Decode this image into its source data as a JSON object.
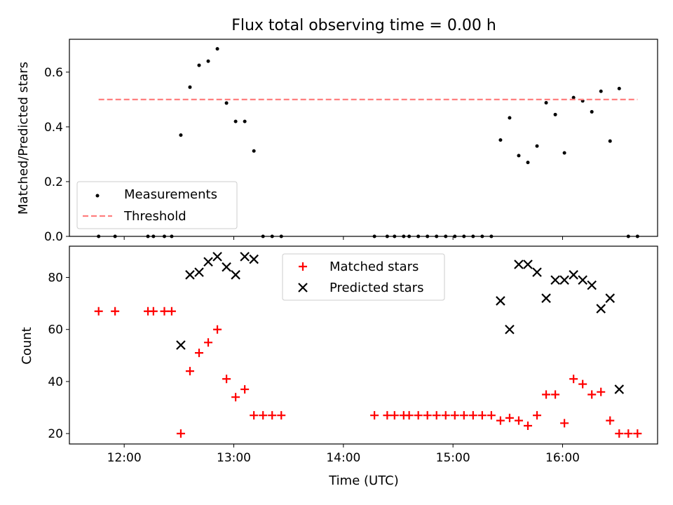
{
  "chart_data": [
    {
      "type": "scatter",
      "title": "Flux total observing time = 0.00 h",
      "xlabel": "",
      "ylabel": "Matched/Predicted stars",
      "xlim": [
        "11:30",
        "16:52"
      ],
      "ylim": [
        0,
        0.72
      ],
      "yticks": [
        0.0,
        0.2,
        0.4,
        0.6
      ],
      "yticklabels": [
        "0.0",
        "0.2",
        "0.4",
        "0.6"
      ],
      "grid": false,
      "legend": "lower left",
      "series": [
        {
          "name": "Measurements",
          "marker": "dot",
          "color": "#000000",
          "points": [
            [
              "11:46",
              0
            ],
            [
              "11:55",
              0
            ],
            [
              "12:13",
              0
            ],
            [
              "12:16",
              0
            ],
            [
              "12:22",
              0
            ],
            [
              "12:26",
              0
            ],
            [
              "12:31",
              0.37
            ],
            [
              "12:36",
              0.545
            ],
            [
              "12:41",
              0.625
            ],
            [
              "12:46",
              0.64
            ],
            [
              "12:51",
              0.685
            ],
            [
              "12:56",
              0.487
            ],
            [
              "13:01",
              0.42
            ],
            [
              "13:06",
              0.42
            ],
            [
              "13:11",
              0.312
            ],
            [
              "13:16",
              0
            ],
            [
              "13:21",
              0
            ],
            [
              "13:26",
              0
            ],
            [
              "14:17",
              0
            ],
            [
              "14:24",
              0
            ],
            [
              "14:28",
              0
            ],
            [
              "14:33",
              0
            ],
            [
              "14:36",
              0
            ],
            [
              "14:41",
              0
            ],
            [
              "14:46",
              0
            ],
            [
              "14:51",
              0
            ],
            [
              "14:56",
              0
            ],
            [
              "15:01",
              0
            ],
            [
              "15:06",
              0
            ],
            [
              "15:11",
              0
            ],
            [
              "15:16",
              0
            ],
            [
              "15:21",
              0
            ],
            [
              "15:26",
              0.352
            ],
            [
              "15:31",
              0.433
            ],
            [
              "15:36",
              0.295
            ],
            [
              "15:41",
              0.27
            ],
            [
              "15:46",
              0.33
            ],
            [
              "15:51",
              0.488
            ],
            [
              "15:56",
              0.445
            ],
            [
              "16:01",
              0.305
            ],
            [
              "16:06",
              0.507
            ],
            [
              "16:11",
              0.495
            ],
            [
              "16:16",
              0.455
            ],
            [
              "16:21",
              0.53
            ],
            [
              "16:26",
              0.348
            ],
            [
              "16:31",
              0.54
            ],
            [
              "16:36",
              0
            ],
            [
              "16:41",
              0
            ]
          ]
        },
        {
          "name": "Threshold",
          "marker": "dashed-line",
          "color": "#ff7f7f",
          "points": [
            [
              "11:46",
              0.5
            ],
            [
              "16:41",
              0.5
            ]
          ]
        }
      ]
    },
    {
      "type": "scatter",
      "title": "",
      "xlabel": "Time (UTC)",
      "ylabel": "Count",
      "xlim": [
        "11:30",
        "16:52"
      ],
      "ylim": [
        16,
        92
      ],
      "yticks": [
        20,
        40,
        60,
        80
      ],
      "yticklabels": [
        "20",
        "40",
        "60",
        "80"
      ],
      "xticks": [
        "12:00",
        "13:00",
        "14:00",
        "15:00",
        "16:00"
      ],
      "xticklabels": [
        "12:00",
        "13:00",
        "14:00",
        "15:00",
        "16:00"
      ],
      "grid": false,
      "legend": "upper center",
      "series": [
        {
          "name": "Matched stars",
          "marker": "plus",
          "color": "#ff0000",
          "points": [
            [
              "11:46",
              67
            ],
            [
              "11:55",
              67
            ],
            [
              "12:13",
              67
            ],
            [
              "12:16",
              67
            ],
            [
              "12:22",
              67
            ],
            [
              "12:26",
              67
            ],
            [
              "12:31",
              20
            ],
            [
              "12:36",
              44
            ],
            [
              "12:41",
              51
            ],
            [
              "12:46",
              55
            ],
            [
              "12:51",
              60
            ],
            [
              "12:56",
              41
            ],
            [
              "13:01",
              34
            ],
            [
              "13:06",
              37
            ],
            [
              "13:11",
              27
            ],
            [
              "13:16",
              27
            ],
            [
              "13:21",
              27
            ],
            [
              "13:26",
              27
            ],
            [
              "14:17",
              27
            ],
            [
              "14:24",
              27
            ],
            [
              "14:28",
              27
            ],
            [
              "14:33",
              27
            ],
            [
              "14:36",
              27
            ],
            [
              "14:41",
              27
            ],
            [
              "14:46",
              27
            ],
            [
              "14:51",
              27
            ],
            [
              "14:56",
              27
            ],
            [
              "15:01",
              27
            ],
            [
              "15:06",
              27
            ],
            [
              "15:11",
              27
            ],
            [
              "15:16",
              27
            ],
            [
              "15:21",
              27
            ],
            [
              "15:26",
              25
            ],
            [
              "15:31",
              26
            ],
            [
              "15:36",
              25
            ],
            [
              "15:41",
              23
            ],
            [
              "15:46",
              27
            ],
            [
              "15:51",
              35
            ],
            [
              "15:56",
              35
            ],
            [
              "16:01",
              24
            ],
            [
              "16:06",
              41
            ],
            [
              "16:11",
              39
            ],
            [
              "16:16",
              35
            ],
            [
              "16:21",
              36
            ],
            [
              "16:26",
              25
            ],
            [
              "16:31",
              20
            ],
            [
              "16:36",
              20
            ],
            [
              "16:41",
              20
            ]
          ]
        },
        {
          "name": "Predicted stars",
          "marker": "x",
          "color": "#000000",
          "points": [
            [
              "12:31",
              54
            ],
            [
              "12:36",
              81
            ],
            [
              "12:41",
              82
            ],
            [
              "12:46",
              86
            ],
            [
              "12:51",
              88
            ],
            [
              "12:56",
              84
            ],
            [
              "13:01",
              81
            ],
            [
              "13:06",
              88
            ],
            [
              "13:11",
              87
            ],
            [
              "15:26",
              71
            ],
            [
              "15:31",
              60
            ],
            [
              "15:36",
              85
            ],
            [
              "15:41",
              85
            ],
            [
              "15:46",
              82
            ],
            [
              "15:51",
              72
            ],
            [
              "15:56",
              79
            ],
            [
              "16:01",
              79
            ],
            [
              "16:06",
              81
            ],
            [
              "16:11",
              79
            ],
            [
              "16:16",
              77
            ],
            [
              "16:21",
              68
            ],
            [
              "16:26",
              72
            ],
            [
              "16:31",
              37
            ]
          ]
        }
      ]
    }
  ]
}
